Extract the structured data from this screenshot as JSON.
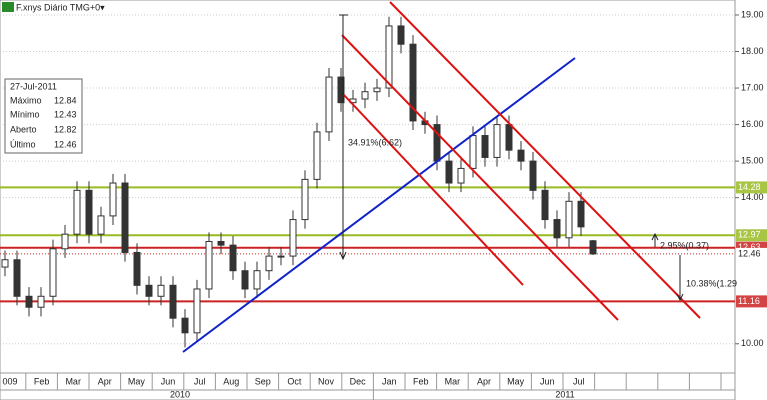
{
  "title": "F.xnys Diário TMG+0▾",
  "info": {
    "date": "27-Jul-2011",
    "labels": [
      "Máximo",
      "Mínimo",
      "Aberto",
      "Último"
    ]
  },
  "chart_data": {
    "type": "candlestick",
    "open": [
      12.1,
      12.3,
      11.3,
      11.0,
      11.3,
      12.6,
      13.0,
      14.2,
      13.0,
      13.5,
      14.4,
      12.5,
      11.6,
      11.3,
      11.6,
      10.7,
      10.3,
      11.5,
      12.8,
      12.7,
      12.0,
      11.5,
      12.0,
      12.4,
      12.4,
      13.4,
      14.5,
      15.8,
      17.3,
      16.6,
      16.7,
      16.9,
      17.0,
      18.7,
      18.2,
      16.1,
      16.0,
      15.0,
      14.4,
      14.8,
      15.7,
      15.1,
      16.0,
      15.3,
      15.0,
      14.2,
      13.4,
      12.9,
      13.9,
      12.82
    ],
    "high": [
      12.55,
      12.55,
      11.55,
      11.55,
      12.85,
      13.25,
      14.45,
      14.45,
      13.75,
      14.65,
      14.65,
      12.75,
      11.85,
      11.85,
      11.85,
      10.95,
      11.75,
      13.05,
      13.05,
      12.95,
      12.25,
      12.25,
      12.65,
      12.65,
      13.65,
      14.75,
      16.05,
      17.55,
      17.55,
      16.95,
      17.15,
      17.25,
      18.95,
      18.95,
      18.45,
      16.35,
      16.25,
      15.25,
      15.05,
      15.95,
      15.95,
      16.25,
      16.25,
      15.55,
      15.25,
      14.45,
      13.65,
      14.15,
      14.15,
      12.84
    ],
    "low": [
      11.85,
      11.05,
      10.75,
      10.75,
      11.05,
      12.35,
      12.75,
      12.75,
      12.75,
      13.25,
      12.25,
      11.35,
      11.05,
      11.05,
      10.45,
      9.9,
      10.05,
      11.25,
      12.45,
      11.75,
      11.25,
      11.25,
      11.75,
      12.15,
      12.15,
      13.15,
      14.25,
      15.55,
      16.35,
      16.35,
      16.45,
      16.65,
      16.75,
      17.95,
      15.85,
      15.75,
      14.75,
      14.15,
      14.15,
      14.55,
      14.85,
      14.85,
      15.05,
      14.75,
      13.95,
      13.15,
      12.65,
      12.65,
      12.95,
      12.43
    ],
    "close": [
      12.3,
      11.3,
      11.0,
      11.3,
      12.6,
      13.0,
      14.2,
      13.0,
      13.5,
      14.4,
      12.5,
      11.6,
      11.3,
      11.6,
      10.7,
      10.3,
      11.5,
      12.8,
      12.7,
      12.0,
      11.5,
      12.0,
      12.4,
      12.4,
      13.4,
      14.5,
      15.8,
      17.3,
      16.6,
      16.7,
      16.9,
      17.0,
      18.7,
      18.2,
      16.1,
      16.0,
      15.0,
      14.4,
      14.8,
      15.7,
      15.1,
      16.0,
      15.3,
      15.0,
      14.2,
      13.4,
      12.9,
      13.9,
      13.2,
      12.46
    ],
    "ylim": [
      9.2,
      19.41
    ],
    "yticks": [
      {
        "value": 19,
        "label": "19.00"
      },
      {
        "value": 18,
        "label": "18.00"
      },
      {
        "value": 17,
        "label": "17.00"
      },
      {
        "value": 16,
        "label": "16.00"
      },
      {
        "value": 15,
        "label": "15.00"
      },
      {
        "value": 14,
        "label": "14.00"
      },
      {
        "value": 10,
        "label": "10.00"
      }
    ],
    "categories": [
      "009",
      "Feb",
      "Mar",
      "Apr",
      "May",
      "Jun",
      "Jul",
      "Aug",
      "Sep",
      "Oct",
      "Nov",
      "Dec",
      "Jan",
      "Feb",
      "Mar",
      "Apr",
      "May",
      "Jun",
      "Jul",
      null,
      null,
      null,
      null
    ],
    "years": [
      "2010",
      "2011"
    ],
    "levels": [
      {
        "value": 14.28,
        "color": "#99bb22"
      },
      {
        "value": 12.97,
        "color": "#99bb22"
      },
      {
        "value": 12.63,
        "color": "#cc2222"
      },
      {
        "value": 12.46,
        "color": "#cc2222"
      },
      {
        "value": 11.16,
        "color": "#cc2222"
      }
    ],
    "annotations": [
      "34.91%(6.62)",
      "2.95%(0.37)",
      "10.38%(1.29"
    ]
  }
}
